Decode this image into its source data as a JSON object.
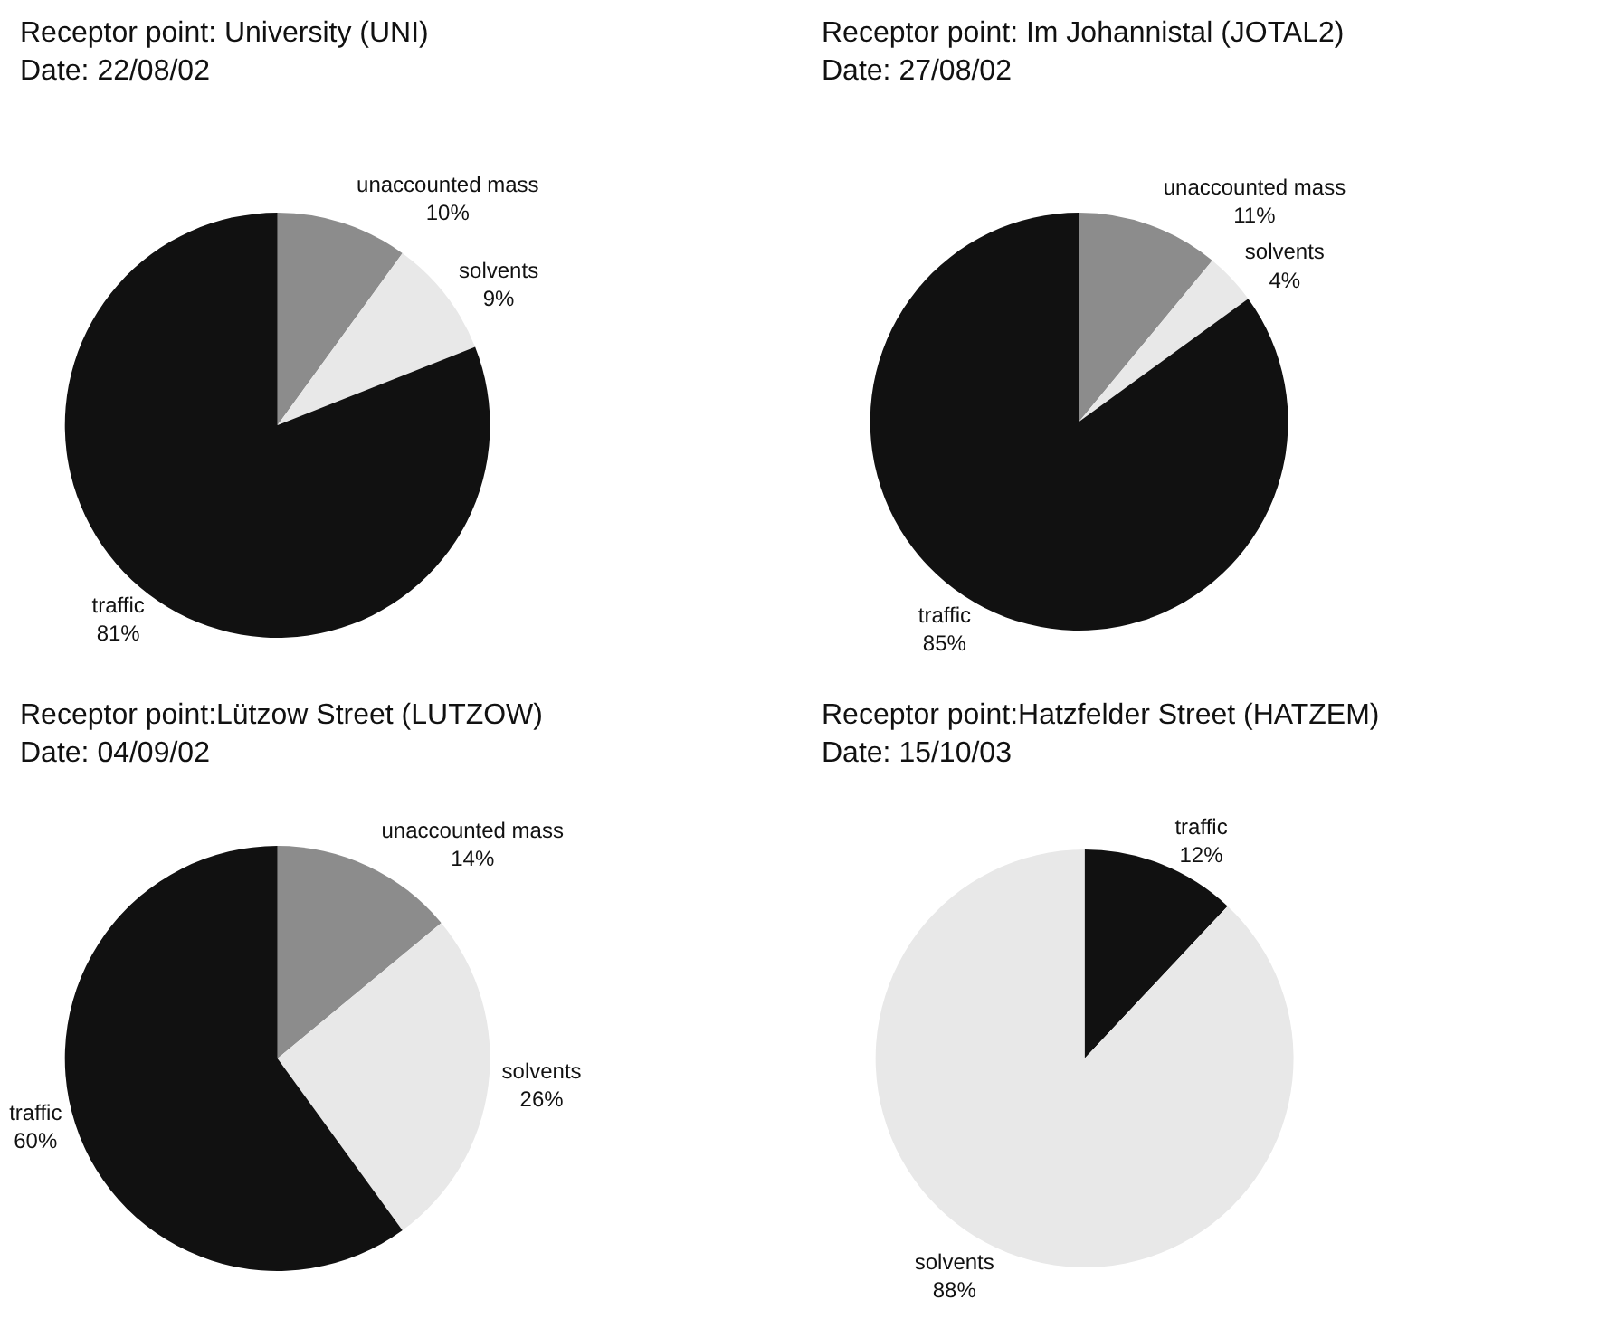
{
  "chart_data": [
    {
      "type": "pie",
      "title": "Receptor point: University (UNI)",
      "subtitle": "Date: 22/08/02",
      "categories": [
        "unaccounted mass",
        "solvents",
        "traffic"
      ],
      "values": [
        10,
        9,
        81
      ],
      "value_labels": [
        "10%",
        "9%",
        "81%"
      ],
      "colors": [
        "#8c8c8c",
        "#e8e8e8",
        "#111111"
      ],
      "legend": false
    },
    {
      "type": "pie",
      "title": "Receptor point: Im Johannistal (JOTAL2)",
      "subtitle": "Date: 27/08/02",
      "categories": [
        "unaccounted mass",
        "solvents",
        "traffic"
      ],
      "values": [
        11,
        4,
        85
      ],
      "value_labels": [
        "11%",
        "4%",
        "85%"
      ],
      "colors": [
        "#8c8c8c",
        "#e8e8e8",
        "#111111"
      ],
      "legend": false
    },
    {
      "type": "pie",
      "title": "Receptor point:Lützow Street (LUTZOW)",
      "subtitle": "Date: 04/09/02",
      "categories": [
        "unaccounted mass",
        "solvents",
        "traffic"
      ],
      "values": [
        14,
        26,
        60
      ],
      "value_labels": [
        "14%",
        "26%",
        "60%"
      ],
      "colors": [
        "#8c8c8c",
        "#e8e8e8",
        "#111111"
      ],
      "legend": false
    },
    {
      "type": "pie",
      "title": "Receptor point:Hatzfelder Street (HATZEM)",
      "subtitle": "Date: 15/10/03",
      "categories": [
        "traffic",
        "solvents"
      ],
      "values": [
        12,
        88
      ],
      "value_labels": [
        "12%",
        "88%"
      ],
      "colors": [
        "#111111",
        "#e8e8e8"
      ],
      "legend": false
    }
  ]
}
